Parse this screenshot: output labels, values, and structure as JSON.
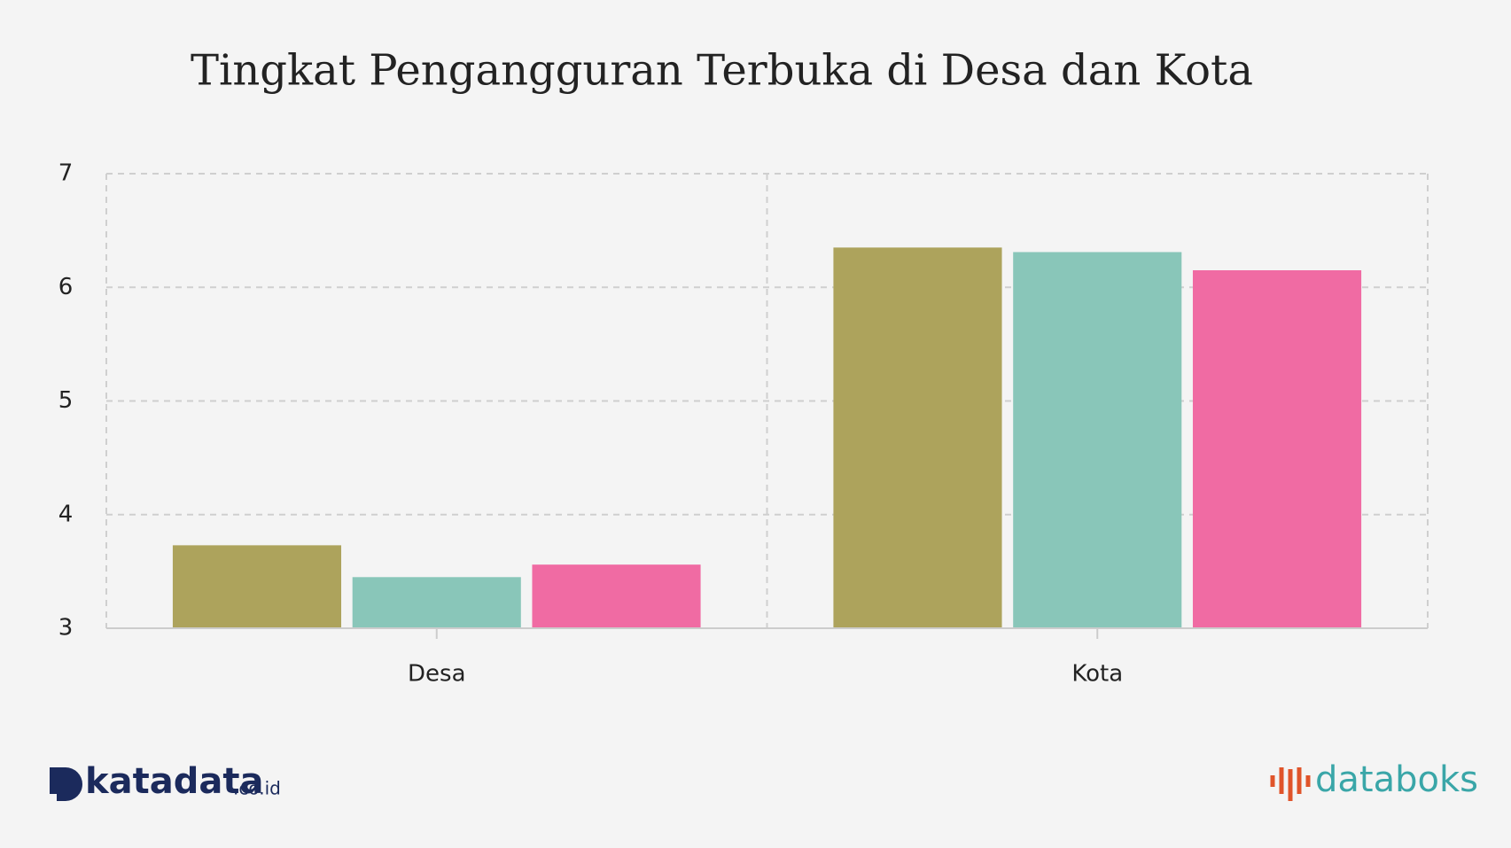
{
  "chart_data": {
    "type": "bar",
    "title": "Tingkat Pengangguran Terbuka di Desa dan Kota",
    "categories": [
      "Desa",
      "Kota"
    ],
    "series": [
      {
        "color": "#ada35c",
        "values": [
          3.73,
          6.35
        ]
      },
      {
        "color": "#89c6b9",
        "values": [
          3.45,
          6.31
        ]
      },
      {
        "color": "#f06ba3",
        "values": [
          3.56,
          6.15
        ]
      }
    ],
    "ylim": [
      3,
      7
    ],
    "yticks": [
      3,
      4,
      5,
      6,
      7
    ],
    "grid": true
  },
  "logos": {
    "left": "katadata",
    "left_suffix": ".co.id",
    "right": "databoks"
  }
}
